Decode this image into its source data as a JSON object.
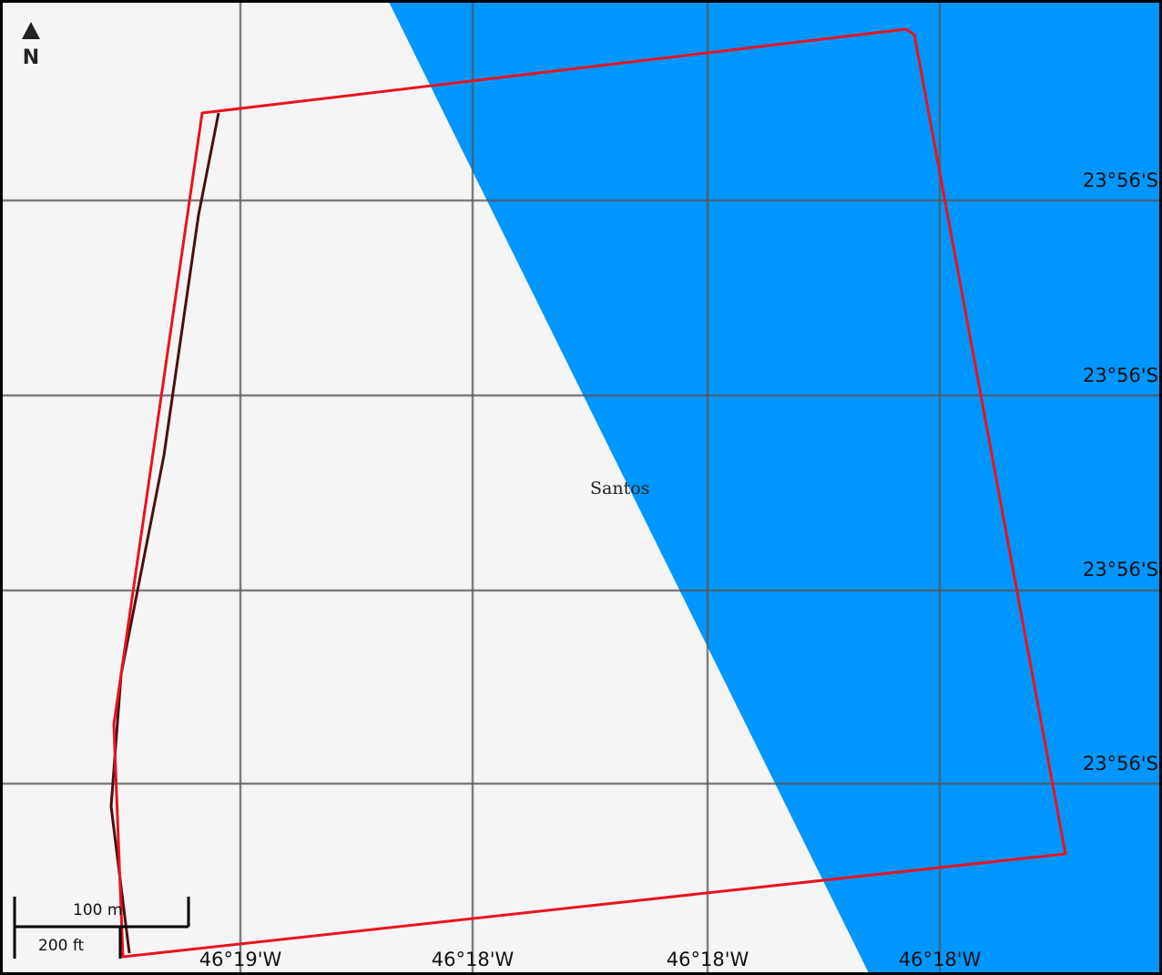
{
  "map": {
    "place_name": "Santos",
    "colors": {
      "land": "#f5f5f5",
      "water": "#0096ff",
      "grid": "#555555",
      "boundary": "#e8141e",
      "track": "#4a1010",
      "frame": "#000000"
    }
  },
  "north_arrow": {
    "icon": "north-arrow-icon",
    "letter": "N"
  },
  "graticule": {
    "longitude_labels": [
      "46°19'W",
      "46°18'W",
      "46°18'W",
      "46°18'W"
    ],
    "latitude_labels": [
      "23°56'S",
      "23°56'S",
      "23°56'S",
      "23°56'S"
    ]
  },
  "scale_bar": {
    "metric_label": "100 m",
    "imperial_label": "200 ft"
  }
}
